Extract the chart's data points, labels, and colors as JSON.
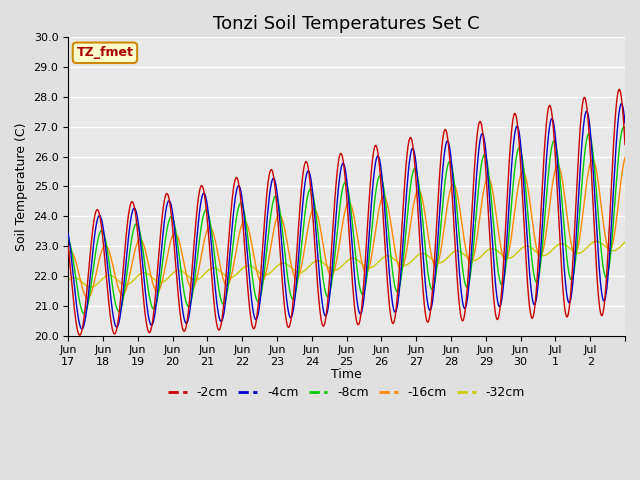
{
  "title": "Tonzi Soil Temperatures Set C",
  "ylabel": "Soil Temperature (C)",
  "xlabel": "Time",
  "annotation": "TZ_fmet",
  "ylim": [
    20.0,
    30.0
  ],
  "yticks": [
    20.0,
    21.0,
    22.0,
    23.0,
    24.0,
    25.0,
    26.0,
    27.0,
    28.0,
    29.0,
    30.0
  ],
  "colors": {
    "-2cm": "#cc0000",
    "-4cm": "#0000cc",
    "-8cm": "#00cc00",
    "-16cm": "#ff8800",
    "-32cm": "#cccc00"
  },
  "bg_color": "#e0e0e0",
  "plot_bg_color": "#e8e8e8",
  "grid_color": "#ffffff",
  "xtick_labels": [
    "Jun\n17",
    "Jun\n18",
    "Jun\n19",
    "Jun\n20",
    "Jun\n21",
    "Jun\n22",
    "Jun\n23",
    "Jun\n24",
    "Jun\n25",
    "Jun\n26",
    "Jun\n27",
    "Jun\n28",
    "Jun\n29",
    "Jun\n30",
    "Jul\n1",
    "Jul\n2"
  ],
  "annotation_bg": "#ffffcc",
  "annotation_border": "#cc8800",
  "title_fontsize": 13,
  "tick_fontsize": 8,
  "ylabel_fontsize": 9,
  "xlabel_fontsize": 9
}
